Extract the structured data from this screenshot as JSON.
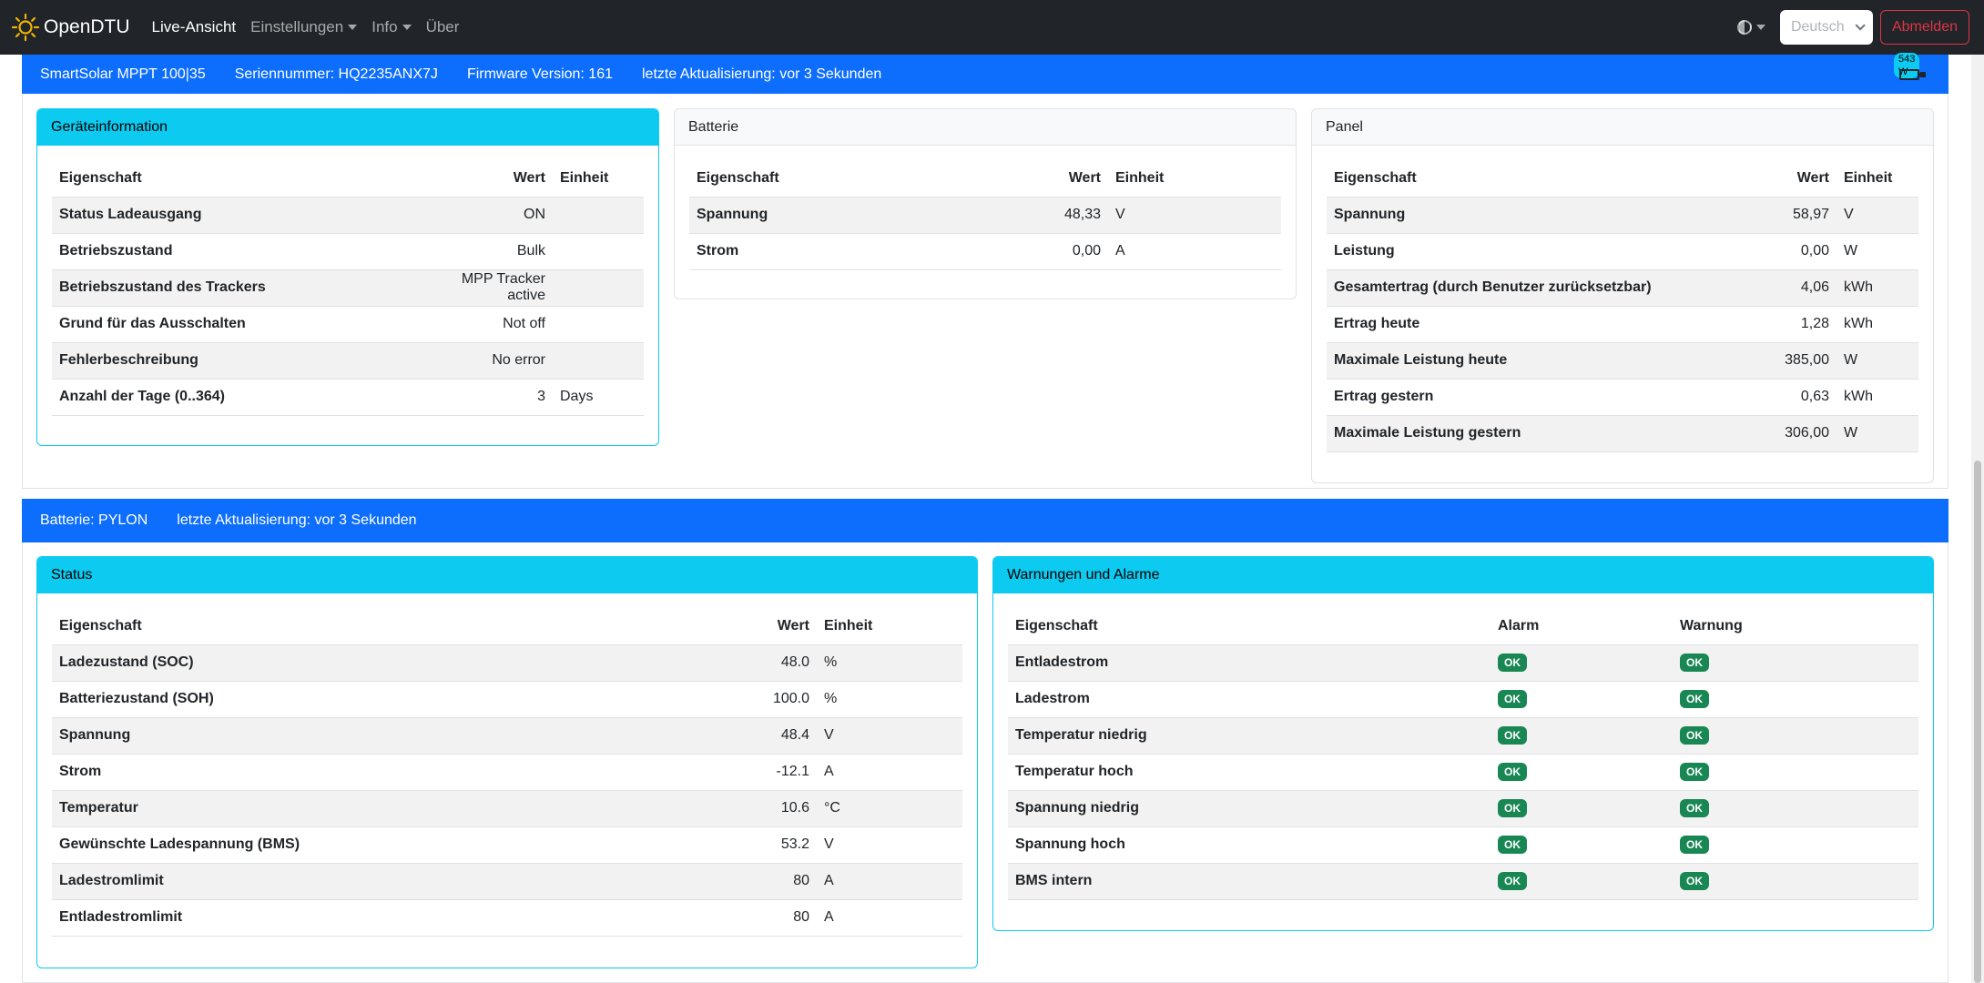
{
  "navbar": {
    "brand": "OpenDTU",
    "items": [
      {
        "label": "Live-Ansicht"
      },
      {
        "label": "Einstellungen"
      },
      {
        "label": "Info"
      },
      {
        "label": "Über"
      }
    ],
    "language": "Deutsch",
    "logout": "Abmelden"
  },
  "mppt": {
    "device": "SmartSolar MPPT 100|35",
    "serial": "Seriennummer: HQ2235ANX7J",
    "firmware": "Firmware Version: 161",
    "updated": "letzte Aktualisierung: vor 3 Sekunden",
    "power_badge": "543 W",
    "device_info": {
      "title": "Geräteinformation",
      "headers": {
        "prop": "Eigenschaft",
        "value": "Wert",
        "unit": "Einheit"
      },
      "rows": [
        {
          "prop": "Status Ladeausgang",
          "value": "ON",
          "unit": ""
        },
        {
          "prop": "Betriebszustand",
          "value": "Bulk",
          "unit": ""
        },
        {
          "prop": "Betriebszustand des Trackers",
          "value": "MPP Tracker active",
          "unit": ""
        },
        {
          "prop": "Grund für das Ausschalten",
          "value": "Not off",
          "unit": ""
        },
        {
          "prop": "Fehlerbeschreibung",
          "value": "No error",
          "unit": ""
        },
        {
          "prop": "Anzahl der Tage (0..364)",
          "value": "3",
          "unit": "Days"
        }
      ]
    },
    "battery": {
      "title": "Batterie",
      "headers": {
        "prop": "Eigenschaft",
        "value": "Wert",
        "unit": "Einheit"
      },
      "rows": [
        {
          "prop": "Spannung",
          "value": "48,33",
          "unit": "V"
        },
        {
          "prop": "Strom",
          "value": "0,00",
          "unit": "A"
        }
      ]
    },
    "panel": {
      "title": "Panel",
      "headers": {
        "prop": "Eigenschaft",
        "value": "Wert",
        "unit": "Einheit"
      },
      "rows": [
        {
          "prop": "Spannung",
          "value": "58,97",
          "unit": "V"
        },
        {
          "prop": "Leistung",
          "value": "0,00",
          "unit": "W"
        },
        {
          "prop": "Gesamtertrag (durch Benutzer zurücksetzbar)",
          "value": "4,06",
          "unit": "kWh"
        },
        {
          "prop": "Ertrag heute",
          "value": "1,28",
          "unit": "kWh"
        },
        {
          "prop": "Maximale Leistung heute",
          "value": "385,00",
          "unit": "W"
        },
        {
          "prop": "Ertrag gestern",
          "value": "0,63",
          "unit": "kWh"
        },
        {
          "prop": "Maximale Leistung gestern",
          "value": "306,00",
          "unit": "W"
        }
      ]
    }
  },
  "batt": {
    "name": "Batterie: PYLON",
    "updated": "letzte Aktualisierung: vor 3 Sekunden",
    "status": {
      "title": "Status",
      "headers": {
        "prop": "Eigenschaft",
        "value": "Wert",
        "unit": "Einheit"
      },
      "rows": [
        {
          "prop": "Ladezustand (SOC)",
          "value": "48.0",
          "unit": "%"
        },
        {
          "prop": "Batteriezustand (SOH)",
          "value": "100.0",
          "unit": "%"
        },
        {
          "prop": "Spannung",
          "value": "48.4",
          "unit": "V"
        },
        {
          "prop": "Strom",
          "value": "-12.1",
          "unit": "A"
        },
        {
          "prop": "Temperatur",
          "value": "10.6",
          "unit": "°C"
        },
        {
          "prop": "Gewünschte Ladespannung (BMS)",
          "value": "53.2",
          "unit": "V"
        },
        {
          "prop": "Ladestromlimit",
          "value": "80",
          "unit": "A"
        },
        {
          "prop": "Entladestromlimit",
          "value": "80",
          "unit": "A"
        }
      ]
    },
    "alarms": {
      "title": "Warnungen und Alarme",
      "headers": {
        "prop": "Eigenschaft",
        "alarm": "Alarm",
        "warning": "Warnung"
      },
      "rows": [
        {
          "prop": "Entladestrom",
          "alarm": "OK",
          "warning": "OK"
        },
        {
          "prop": "Ladestrom",
          "alarm": "OK",
          "warning": "OK"
        },
        {
          "prop": "Temperatur niedrig",
          "alarm": "OK",
          "warning": "OK"
        },
        {
          "prop": "Temperatur hoch",
          "alarm": "OK",
          "warning": "OK"
        },
        {
          "prop": "Spannung niedrig",
          "alarm": "OK",
          "warning": "OK"
        },
        {
          "prop": "Spannung hoch",
          "alarm": "OK",
          "warning": "OK"
        },
        {
          "prop": "BMS intern",
          "alarm": "OK",
          "warning": "OK"
        }
      ]
    }
  },
  "colors": {
    "navbar": "#212529",
    "primary": "#0d6efd",
    "info": "#0dcaf0",
    "success": "#198754",
    "danger": "#dc3545"
  }
}
